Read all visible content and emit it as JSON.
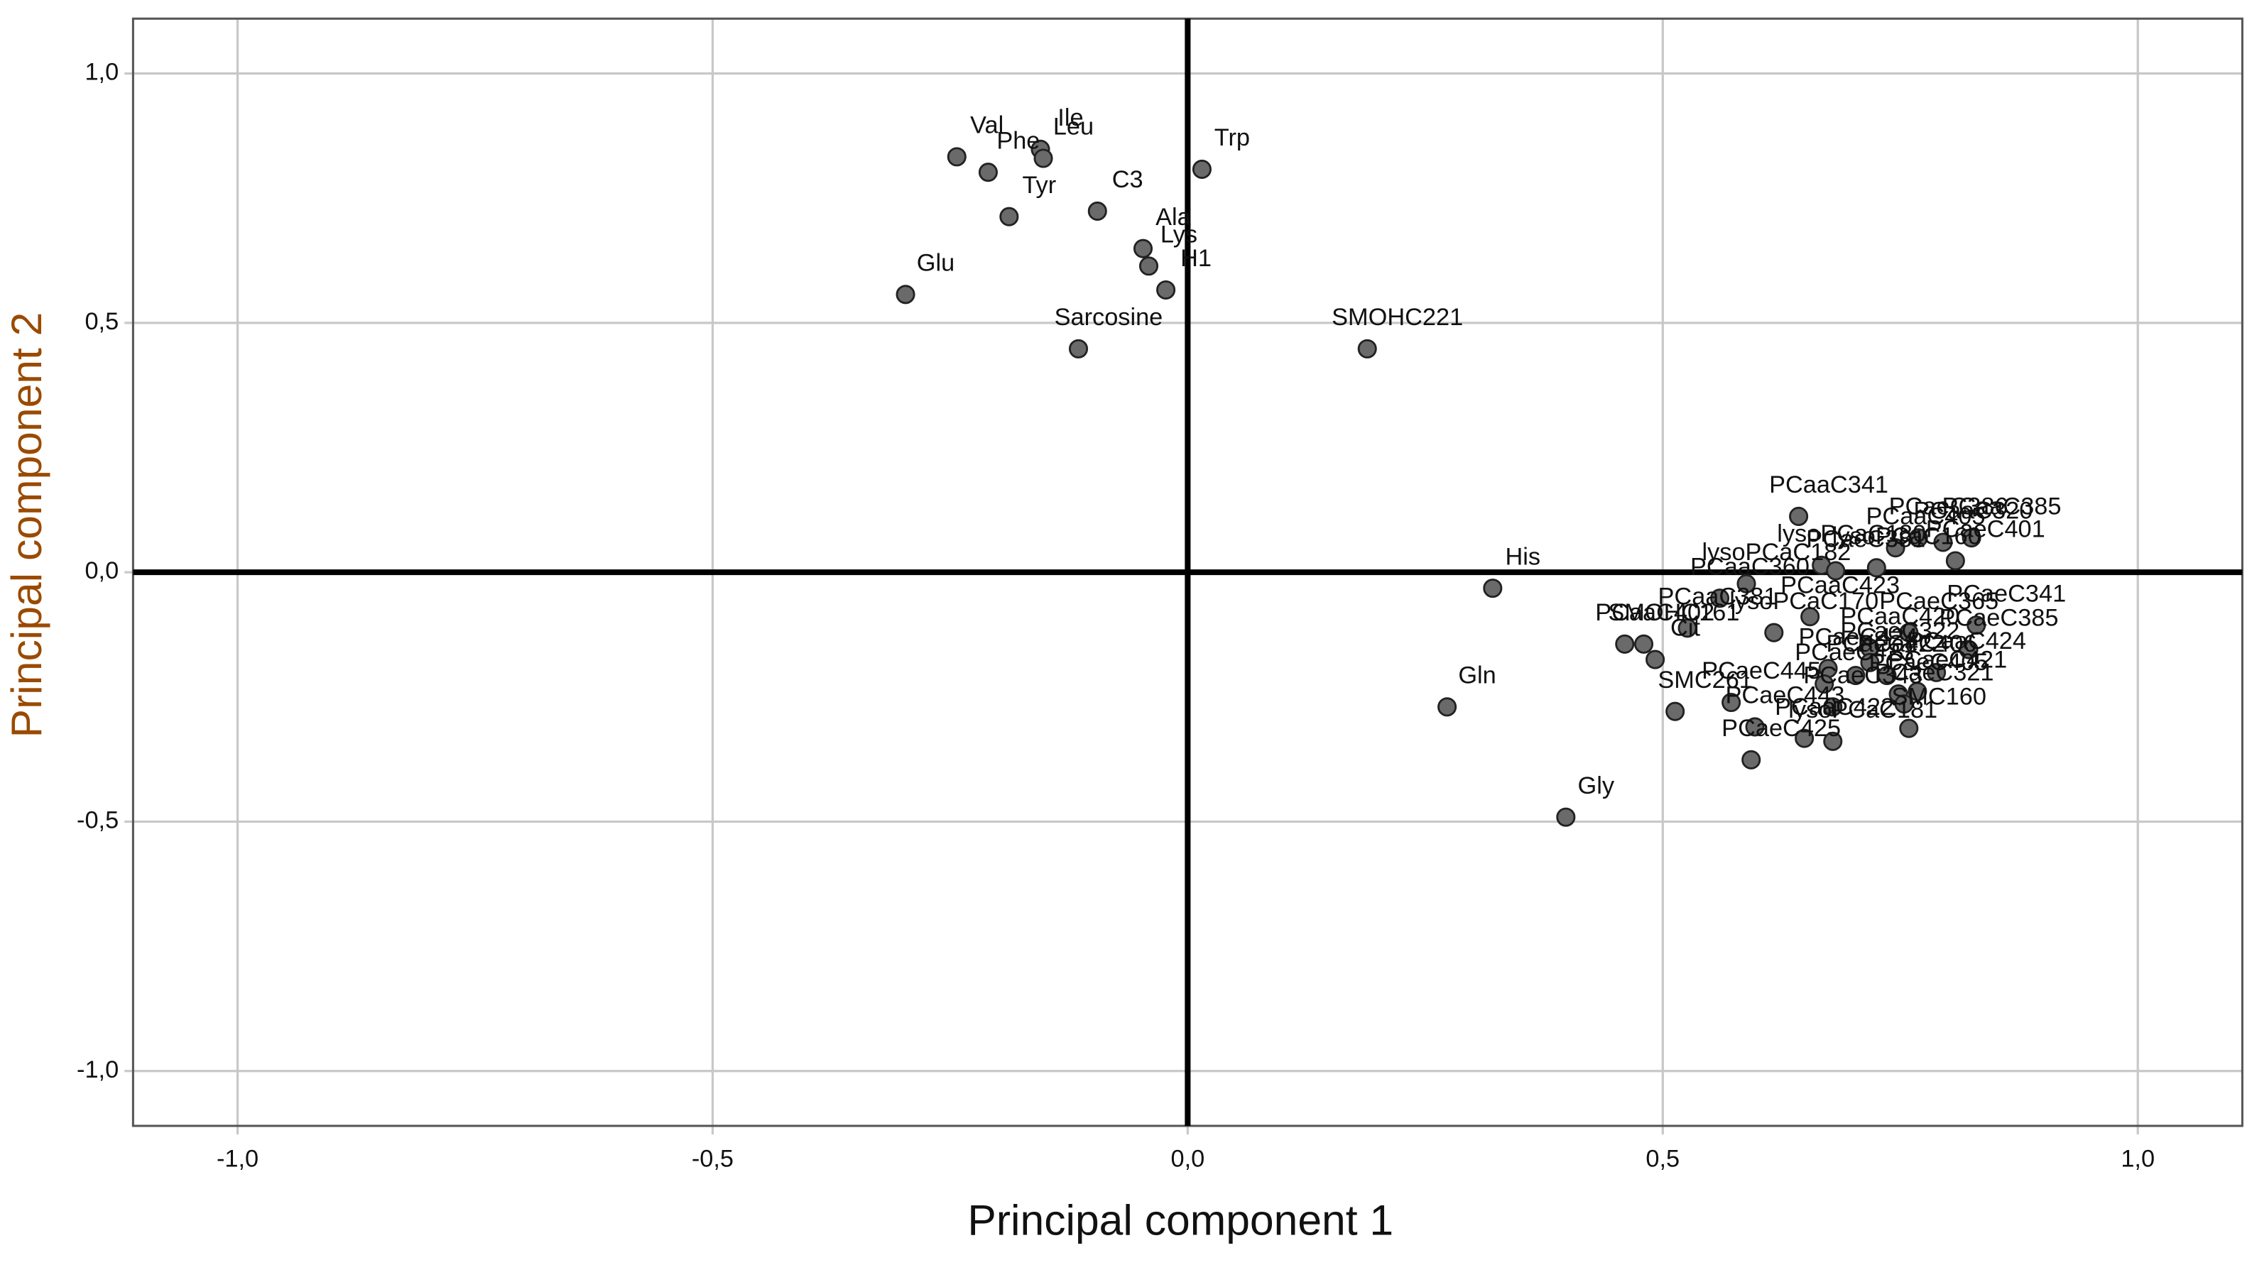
{
  "chart_data": {
    "type": "scatter",
    "x_label": "Principal component 1",
    "y_label": "Principal component 2",
    "xlim": [
      -1.11,
      1.11
    ],
    "ylim": [
      -1.11,
      1.11
    ],
    "xticks": [
      {
        "value": -1,
        "label": "-1,0"
      },
      {
        "value": -0.5,
        "label": "-0,5"
      },
      {
        "value": 0,
        "label": "0,0"
      },
      {
        "value": 0.5,
        "label": "0,5"
      },
      {
        "value": 1,
        "label": "1,0"
      }
    ],
    "yticks": [
      {
        "value": -1,
        "label": "-1,0"
      },
      {
        "value": -0.5,
        "label": "-0,5"
      },
      {
        "value": 0,
        "label": "0,0"
      },
      {
        "value": 0.5,
        "label": "0,5"
      },
      {
        "value": 1,
        "label": "1,0"
      }
    ],
    "grid": true,
    "color": "#6a6a6a",
    "point_labels": [
      "Val",
      "Ile",
      "Leu",
      "Phe",
      "C3",
      "Tyr",
      "Glu",
      "Ala",
      "Lys",
      "H1",
      "Sarcosine",
      "Trp",
      "SMOHC221",
      "PCaaC341",
      "PCaeC386",
      "PCaaC385",
      "lysoPCaC180",
      "PCaaC405",
      "PCaaC320",
      "His",
      "lysoPCaC182",
      "lysoPCaC160",
      "PCaeC401",
      "PCaaC360",
      "PCaeC381",
      "PCaaC423",
      "PCaeC365",
      "PCaeC341",
      "PCaeC385",
      "PCaaC381",
      "SMOHC161",
      "lysoPCaC170",
      "PCaaC420",
      "PCaaC424",
      "PCaeC406",
      "PCaaC402",
      "PCaeC421",
      "PCaeC424",
      "PCaeC423",
      "Cit",
      "PCaeC405",
      "SMC261",
      "PCaeC321",
      "PCaeC422",
      "Gln",
      "PCaeC445",
      "PCaeC443",
      "SMC160",
      "PCaeC322",
      "PCaaC422",
      "Gly",
      "PCaeC425",
      "lysoPCaC181",
      "PCaeC343"
    ],
    "x": [
      -0.243,
      -0.155,
      -0.152,
      -0.21,
      -0.095,
      -0.188,
      -0.297,
      -0.047,
      -0.041,
      -0.023,
      -0.115,
      0.015,
      0.189,
      0.643,
      0.769,
      0.825,
      0.667,
      0.745,
      0.795,
      0.321,
      0.588,
      0.725,
      0.808,
      0.56,
      0.682,
      0.655,
      0.759,
      0.83,
      0.822,
      0.526,
      0.48,
      0.617,
      0.718,
      0.788,
      0.736,
      0.46,
      0.768,
      0.674,
      0.67,
      0.492,
      0.748,
      0.513,
      0.754,
      0.703,
      0.273,
      0.572,
      0.597,
      0.759,
      0.718,
      0.649,
      0.398,
      0.593,
      0.679,
      0.679
    ],
    "values": [
      0.833,
      0.848,
      0.83,
      0.802,
      0.724,
      0.713,
      0.557,
      0.649,
      0.614,
      0.566,
      0.448,
      0.808,
      0.448,
      0.112,
      0.069,
      0.069,
      0.014,
      0.049,
      0.06,
      -0.032,
      -0.023,
      0.009,
      0.023,
      -0.052,
      0.003,
      -0.089,
      -0.121,
      -0.106,
      -0.155,
      -0.112,
      -0.144,
      -0.121,
      -0.152,
      -0.201,
      -0.207,
      -0.144,
      -0.239,
      -0.193,
      -0.224,
      -0.175,
      -0.244,
      -0.279,
      -0.264,
      -0.207,
      -0.27,
      -0.261,
      -0.31,
      -0.313,
      -0.181,
      -0.333,
      -0.491,
      -0.376,
      -0.339,
      -0.27
    ]
  }
}
